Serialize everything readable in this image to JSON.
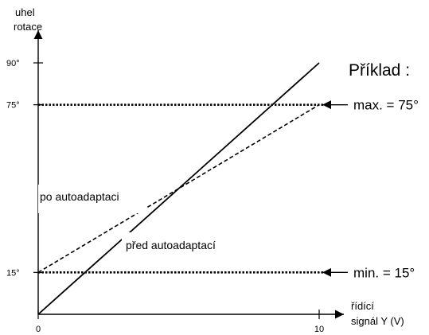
{
  "chart_data": {
    "type": "line",
    "title": "Příklad :",
    "ylabel": [
      "uhel",
      "rotace"
    ],
    "xlabel": [
      "řídící",
      "signál Y (V)"
    ],
    "xlim": [
      0,
      10
    ],
    "ylim": [
      0,
      90
    ],
    "x_ticks": [
      {
        "value": 0,
        "label": "0"
      },
      {
        "value": 10,
        "label": "10"
      }
    ],
    "y_ticks": [
      {
        "value": 15,
        "label": "15°"
      },
      {
        "value": 75,
        "label": "75°"
      },
      {
        "value": 90,
        "label": "90°"
      }
    ],
    "series": [
      {
        "name": "před autoadaptací",
        "style": "solid",
        "x": [
          0,
          10
        ],
        "y": [
          0,
          90
        ]
      },
      {
        "name": "po autoadaptaci",
        "style": "dashed",
        "x": [
          0,
          10
        ],
        "y": [
          15,
          75
        ]
      }
    ],
    "reference_lines": [
      {
        "value": 75,
        "label": "max. = 75°",
        "style": "dotted"
      },
      {
        "value": 15,
        "label": "min. = 15°",
        "style": "dotted"
      }
    ],
    "colors": {
      "line": "#000000",
      "background": "#ffffff"
    }
  }
}
